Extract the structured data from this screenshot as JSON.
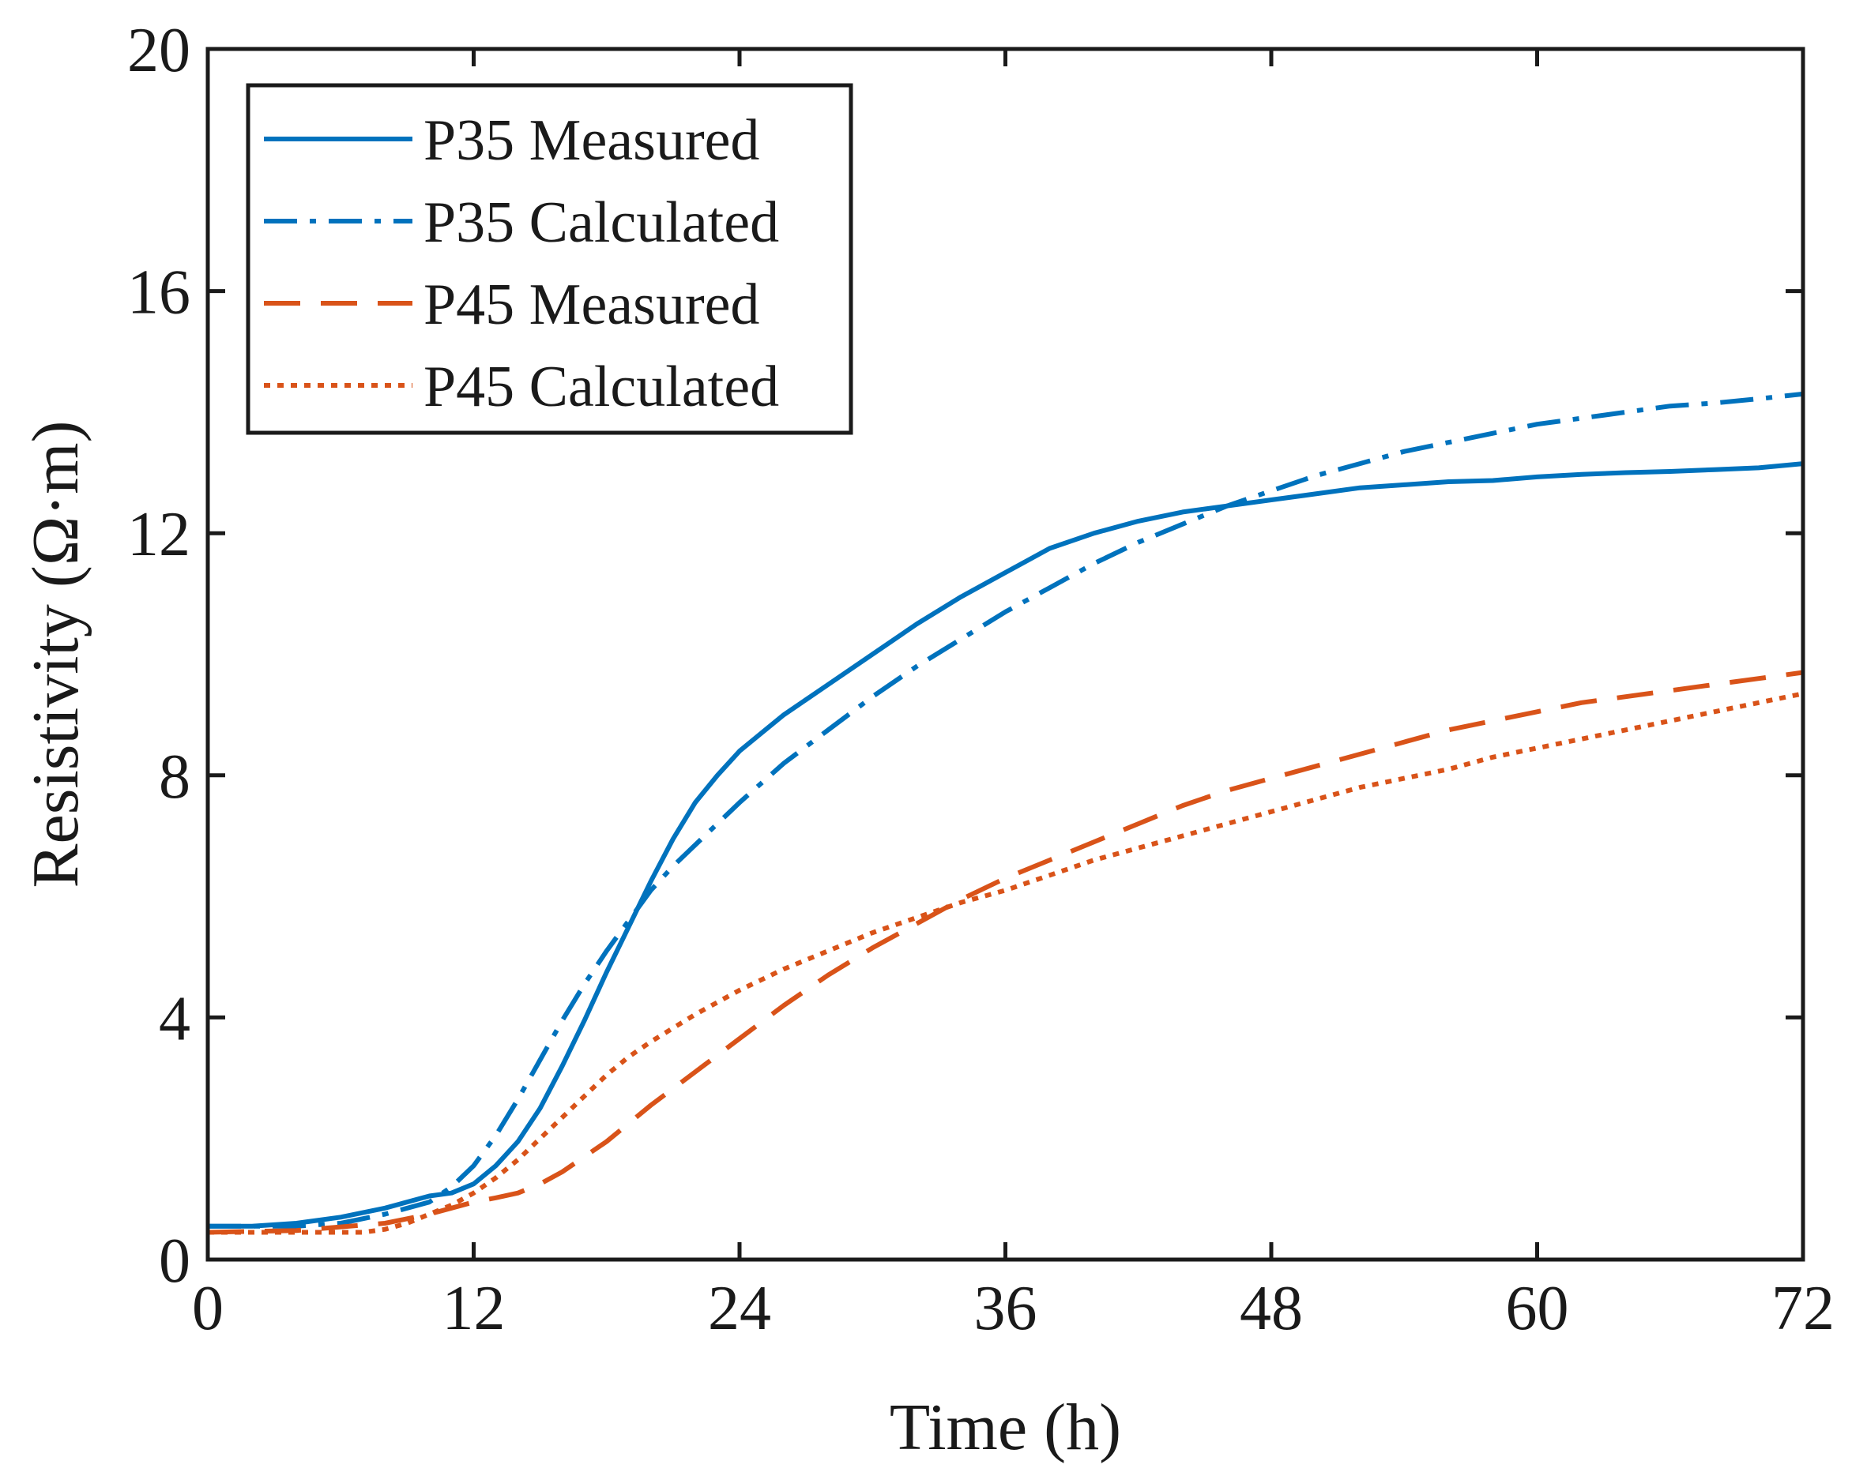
{
  "chart_data": {
    "type": "line",
    "title": "",
    "xlabel": "Time (h)",
    "ylabel": "Resistivity (Ω·m)",
    "xlim": [
      0,
      72
    ],
    "ylim": [
      0,
      20
    ],
    "xticks": [
      0,
      12,
      24,
      36,
      48,
      60,
      72
    ],
    "yticks": [
      0,
      4,
      8,
      12,
      16,
      20
    ],
    "grid": false,
    "legend_position": "top-left",
    "series": [
      {
        "name": "P35 Measured",
        "color": "#0072BD",
        "style": "solid",
        "x": [
          0,
          2,
          4,
          6,
          8,
          10,
          11,
          12,
          13,
          14,
          15,
          16,
          17,
          18,
          19,
          20,
          21,
          22,
          23,
          24,
          25,
          26,
          27,
          28,
          30,
          32,
          34,
          36,
          37,
          38,
          40,
          42,
          44,
          46,
          48,
          50,
          52,
          54,
          56,
          58,
          60,
          62,
          64,
          66,
          68,
          70,
          72
        ],
        "y": [
          0.55,
          0.55,
          0.6,
          0.7,
          0.85,
          1.05,
          1.1,
          1.25,
          1.55,
          1.95,
          2.5,
          3.2,
          3.95,
          4.75,
          5.5,
          6.25,
          6.95,
          7.55,
          8.0,
          8.4,
          8.7,
          9.0,
          9.25,
          9.5,
          10.0,
          10.5,
          10.95,
          11.35,
          11.55,
          11.75,
          12.0,
          12.2,
          12.35,
          12.45,
          12.55,
          12.65,
          12.75,
          12.8,
          12.85,
          12.87,
          12.93,
          12.97,
          13.0,
          13.02,
          13.05,
          13.08,
          13.15
        ]
      },
      {
        "name": "P35 Calculated",
        "color": "#0072BD",
        "style": "dashdot",
        "x": [
          0,
          4,
          6,
          8,
          10,
          11,
          12,
          13,
          14,
          15,
          16,
          17,
          18,
          19,
          20,
          21,
          22,
          24,
          26,
          28,
          30,
          32,
          34,
          36,
          38,
          40,
          42,
          44,
          46,
          48,
          50,
          52,
          54,
          56,
          58,
          60,
          62,
          64,
          66,
          68,
          70,
          72
        ],
        "y": [
          0.55,
          0.55,
          0.6,
          0.75,
          0.95,
          1.2,
          1.55,
          2.05,
          2.65,
          3.3,
          3.95,
          4.55,
          5.1,
          5.6,
          6.1,
          6.5,
          6.85,
          7.55,
          8.2,
          8.75,
          9.3,
          9.8,
          10.25,
          10.7,
          11.1,
          11.5,
          11.85,
          12.15,
          12.45,
          12.7,
          12.95,
          13.15,
          13.35,
          13.5,
          13.65,
          13.8,
          13.9,
          14.0,
          14.1,
          14.15,
          14.22,
          14.3
        ]
      },
      {
        "name": "P45 Measured",
        "color": "#D95319",
        "style": "dashed",
        "x": [
          0,
          4,
          8,
          10,
          11,
          12,
          13,
          14,
          15,
          16,
          17,
          18,
          19,
          20,
          22,
          24,
          26,
          28,
          30,
          32,
          34,
          36,
          38,
          40,
          42,
          44,
          46,
          48,
          50,
          52,
          54,
          56,
          58,
          60,
          62,
          64,
          66,
          68,
          70,
          72
        ],
        "y": [
          0.45,
          0.48,
          0.6,
          0.75,
          0.85,
          0.95,
          1.02,
          1.1,
          1.25,
          1.45,
          1.7,
          1.95,
          2.25,
          2.55,
          3.1,
          3.65,
          4.2,
          4.7,
          5.15,
          5.55,
          5.95,
          6.3,
          6.6,
          6.9,
          7.2,
          7.5,
          7.75,
          7.95,
          8.15,
          8.35,
          8.55,
          8.75,
          8.9,
          9.05,
          9.2,
          9.3,
          9.4,
          9.5,
          9.6,
          9.7
        ]
      },
      {
        "name": "P45 Calculated",
        "color": "#D95319",
        "style": "dotted",
        "x": [
          0,
          4,
          7,
          8,
          9,
          10,
          11,
          12,
          13,
          14,
          15,
          16,
          17,
          18,
          19,
          20,
          22,
          24,
          26,
          28,
          30,
          32,
          34,
          36,
          38,
          40,
          42,
          44,
          46,
          48,
          50,
          52,
          54,
          56,
          58,
          60,
          62,
          64,
          66,
          68,
          70,
          72
        ],
        "y": [
          0.45,
          0.45,
          0.45,
          0.5,
          0.6,
          0.75,
          0.9,
          1.1,
          1.35,
          1.65,
          2.0,
          2.35,
          2.7,
          3.05,
          3.35,
          3.6,
          4.05,
          4.45,
          4.8,
          5.1,
          5.4,
          5.65,
          5.9,
          6.1,
          6.35,
          6.6,
          6.8,
          7.0,
          7.2,
          7.4,
          7.6,
          7.8,
          7.95,
          8.1,
          8.3,
          8.45,
          8.6,
          8.75,
          8.9,
          9.05,
          9.2,
          9.35
        ]
      }
    ]
  }
}
